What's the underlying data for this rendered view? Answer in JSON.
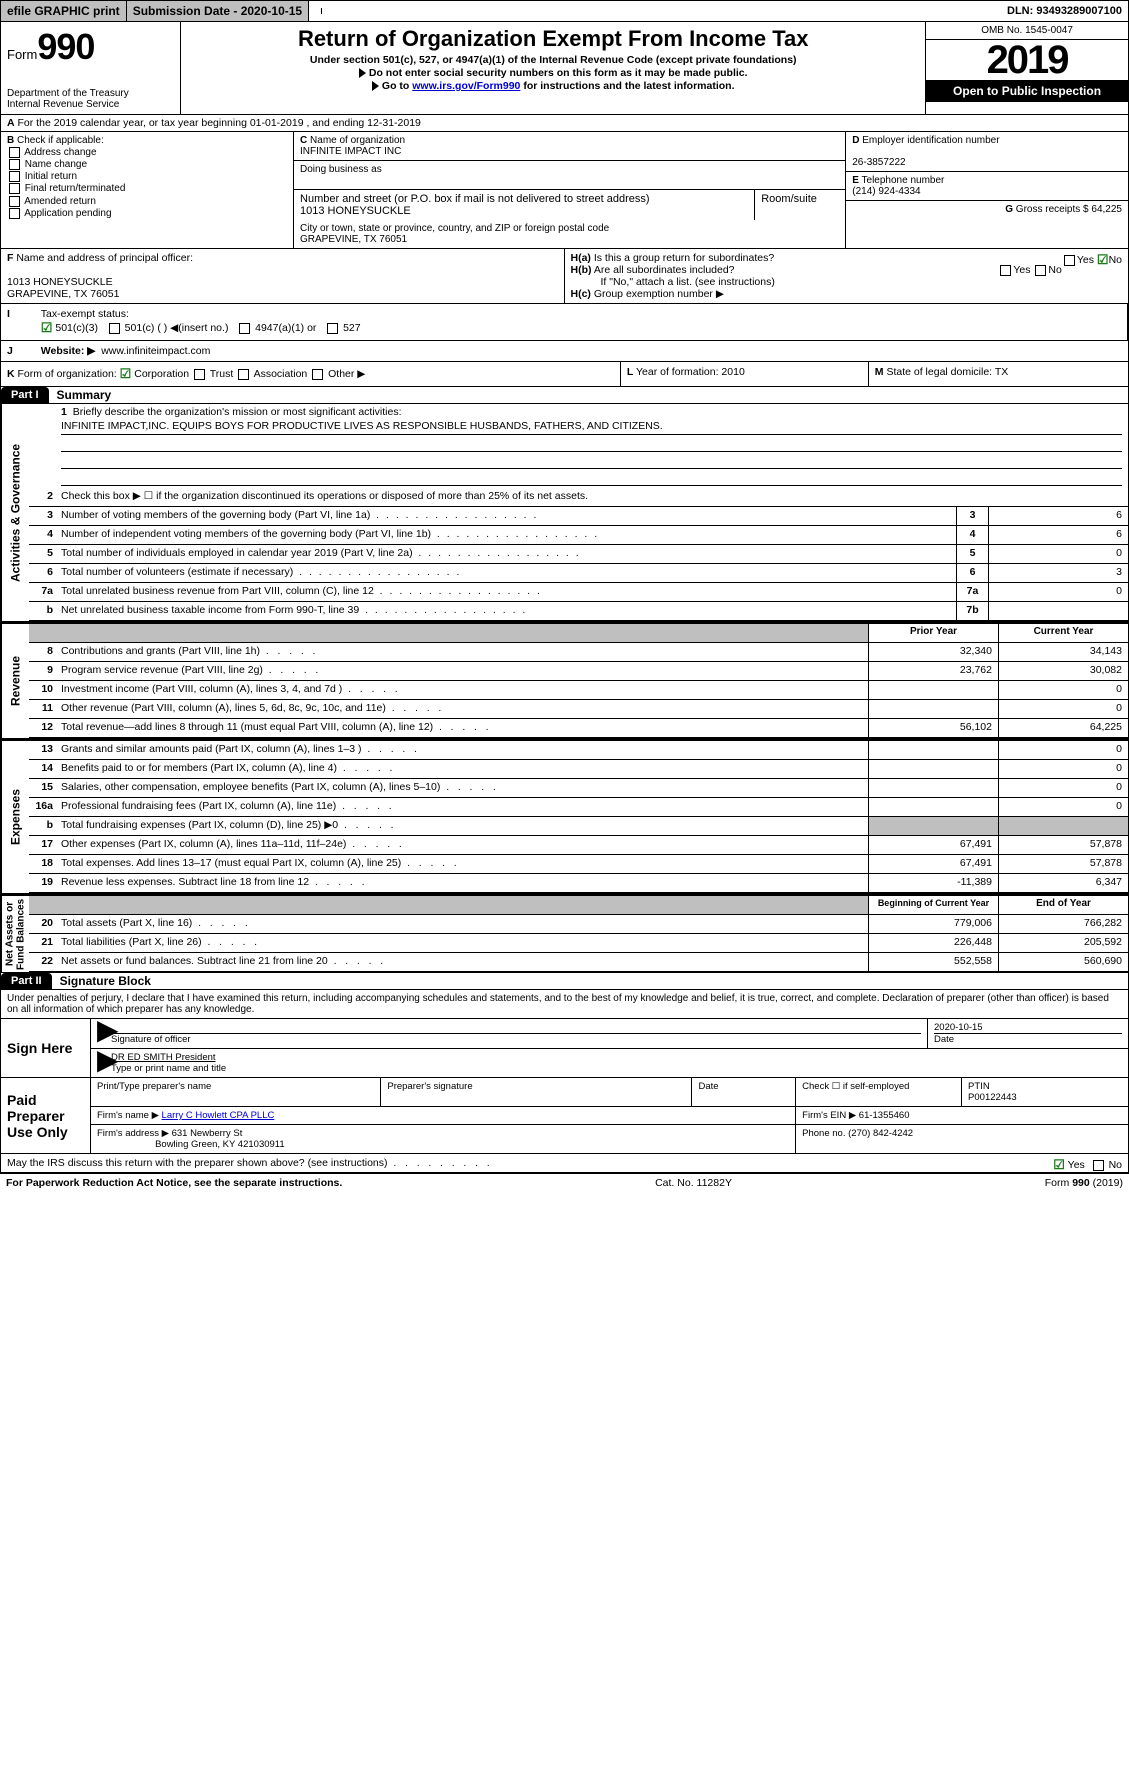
{
  "topbar": {
    "efile": "efile GRAPHIC print",
    "submission_label": "Submission Date - 2020-10-15",
    "dln": "DLN: 93493289007100"
  },
  "header": {
    "form_prefix": "Form",
    "form_number": "990",
    "dept": "Department of the Treasury\nInternal Revenue Service",
    "title": "Return of Organization Exempt From Income Tax",
    "sub1": "Under section 501(c), 527, or 4947(a)(1) of the Internal Revenue Code (except private foundations)",
    "sub2": "Do not enter social security numbers on this form as it may be made public.",
    "sub3_pre": "Go to ",
    "sub3_link": "www.irs.gov/Form990",
    "sub3_post": " for instructions and the latest information.",
    "omb": "OMB No. 1545-0047",
    "year": "2019",
    "open": "Open to Public Inspection"
  },
  "lineA": "For the 2019 calendar year, or tax year beginning 01-01-2019    , and ending 12-31-2019",
  "boxB": {
    "label": "Check if applicable:",
    "items": [
      "Address change",
      "Name change",
      "Initial return",
      "Final return/terminated",
      "Amended return",
      "Application pending"
    ]
  },
  "boxC": {
    "name_label": "Name of organization",
    "name": "INFINITE IMPACT INC",
    "dba_label": "Doing business as",
    "addr_label": "Number and street (or P.O. box if mail is not delivered to street address)",
    "room_label": "Room/suite",
    "addr": "1013 HONEYSUCKLE",
    "city_label": "City or town, state or province, country, and ZIP or foreign postal code",
    "city": "GRAPEVINE, TX  76051"
  },
  "boxD": {
    "label": "Employer identification number",
    "val": "26-3857222"
  },
  "boxE": {
    "label": "Telephone number",
    "val": "(214) 924-4334"
  },
  "boxG": {
    "label": "Gross receipts $",
    "val": "64,225"
  },
  "boxF": {
    "label": "Name and address of principal officer:",
    "addr1": "1013 HONEYSUCKLE",
    "addr2": "GRAPEVINE, TX  76051"
  },
  "boxH": {
    "ha": "Is this a group return for subordinates?",
    "hb": "Are all subordinates included?",
    "hb_note": "If \"No,\" attach a list. (see instructions)",
    "hc": "Group exemption number ▶"
  },
  "rowI": {
    "label": "Tax-exempt status:",
    "opts": [
      "501(c)(3)",
      "501(c) (  ) ◀(insert no.)",
      "4947(a)(1) or",
      "527"
    ]
  },
  "rowJ": {
    "label": "Website: ▶",
    "val": "www.infiniteimpact.com"
  },
  "rowK": {
    "label": "Form of organization:",
    "opts": [
      "Corporation",
      "Trust",
      "Association",
      "Other ▶"
    ],
    "l_label": "Year of formation:",
    "l_val": "2010",
    "m_label": "State of legal domicile:",
    "m_val": "TX"
  },
  "part1": {
    "tag": "Part I",
    "title": "Summary",
    "q1": "Briefly describe the organization's mission or most significant activities:",
    "mission": "INFINITE IMPACT,INC. EQUIPS BOYS FOR PRODUCTIVE LIVES AS RESPONSIBLE HUSBANDS, FATHERS, AND CITIZENS.",
    "q2": "Check this box ▶ ☐  if the organization discontinued its operations or disposed of more than 25% of its net assets.",
    "sideA": "Activities & Governance",
    "sideB": "Revenue",
    "sideC": "Expenses",
    "sideD": "Net Assets or Fund Balances",
    "govrows": [
      {
        "n": "3",
        "t": "Number of voting members of the governing body (Part VI, line 1a)",
        "cn": "3",
        "cv": "6"
      },
      {
        "n": "4",
        "t": "Number of independent voting members of the governing body (Part VI, line 1b)",
        "cn": "4",
        "cv": "6"
      },
      {
        "n": "5",
        "t": "Total number of individuals employed in calendar year 2019 (Part V, line 2a)",
        "cn": "5",
        "cv": "0"
      },
      {
        "n": "6",
        "t": "Total number of volunteers (estimate if necessary)",
        "cn": "6",
        "cv": "3"
      },
      {
        "n": "7a",
        "t": "Total unrelated business revenue from Part VIII, column (C), line 12",
        "cn": "7a",
        "cv": "0"
      },
      {
        "n": "b",
        "t": "Net unrelated business taxable income from Form 990-T, line 39",
        "cn": "7b",
        "cv": ""
      }
    ],
    "col_prior": "Prior Year",
    "col_current": "Current Year",
    "revrows": [
      {
        "n": "8",
        "t": "Contributions and grants (Part VIII, line 1h)",
        "c1": "32,340",
        "c2": "34,143"
      },
      {
        "n": "9",
        "t": "Program service revenue (Part VIII, line 2g)",
        "c1": "23,762",
        "c2": "30,082"
      },
      {
        "n": "10",
        "t": "Investment income (Part VIII, column (A), lines 3, 4, and 7d )",
        "c1": "",
        "c2": "0"
      },
      {
        "n": "11",
        "t": "Other revenue (Part VIII, column (A), lines 5, 6d, 8c, 9c, 10c, and 11e)",
        "c1": "",
        "c2": "0"
      },
      {
        "n": "12",
        "t": "Total revenue—add lines 8 through 11 (must equal Part VIII, column (A), line 12)",
        "c1": "56,102",
        "c2": "64,225"
      }
    ],
    "exprows": [
      {
        "n": "13",
        "t": "Grants and similar amounts paid (Part IX, column (A), lines 1–3 )",
        "c1": "",
        "c2": "0"
      },
      {
        "n": "14",
        "t": "Benefits paid to or for members (Part IX, column (A), line 4)",
        "c1": "",
        "c2": "0"
      },
      {
        "n": "15",
        "t": "Salaries, other compensation, employee benefits (Part IX, column (A), lines 5–10)",
        "c1": "",
        "c2": "0"
      },
      {
        "n": "16a",
        "t": "Professional fundraising fees (Part IX, column (A), line 11e)",
        "c1": "",
        "c2": "0"
      },
      {
        "n": "b",
        "t": "Total fundraising expenses (Part IX, column (D), line 25) ▶0",
        "c1": "grey",
        "c2": "grey"
      },
      {
        "n": "17",
        "t": "Other expenses (Part IX, column (A), lines 11a–11d, 11f–24e)",
        "c1": "67,491",
        "c2": "57,878"
      },
      {
        "n": "18",
        "t": "Total expenses. Add lines 13–17 (must equal Part IX, column (A), line 25)",
        "c1": "67,491",
        "c2": "57,878"
      },
      {
        "n": "19",
        "t": "Revenue less expenses. Subtract line 18 from line 12",
        "c1": "-11,389",
        "c2": "6,347"
      }
    ],
    "col_begin": "Beginning of Current Year",
    "col_end": "End of Year",
    "netrows": [
      {
        "n": "20",
        "t": "Total assets (Part X, line 16)",
        "c1": "779,006",
        "c2": "766,282"
      },
      {
        "n": "21",
        "t": "Total liabilities (Part X, line 26)",
        "c1": "226,448",
        "c2": "205,592"
      },
      {
        "n": "22",
        "t": "Net assets or fund balances. Subtract line 21 from line 20",
        "c1": "552,558",
        "c2": "560,690"
      }
    ]
  },
  "part2": {
    "tag": "Part II",
    "title": "Signature Block",
    "decl": "Under penalties of perjury, I declare that I have examined this return, including accompanying schedules and statements, and to the best of my knowledge and belief, it is true, correct, and complete. Declaration of preparer (other than officer) is based on all information of which preparer has any knowledge.",
    "sign_here": "Sign Here",
    "sig_officer": "Signature of officer",
    "sig_date": "2020-10-15",
    "date_label": "Date",
    "officer_name": "DR ED SMITH  President",
    "type_name": "Type or print name and title",
    "paid": "Paid Preparer Use Only",
    "prep_name_label": "Print/Type preparer's name",
    "prep_sig_label": "Preparer's signature",
    "prep_date_label": "Date",
    "check_self": "Check ☐ if self-employed",
    "ptin_label": "PTIN",
    "ptin": "P00122443",
    "firm_name_label": "Firm's name    ▶",
    "firm_name": "Larry C Howlett CPA PLLC",
    "firm_ein_label": "Firm's EIN ▶",
    "firm_ein": "61-1355460",
    "firm_addr_label": "Firm's address ▶",
    "firm_addr": "631 Newberry St",
    "firm_city": "Bowling Green, KY  421030911",
    "phone_label": "Phone no.",
    "phone": "(270) 842-4242",
    "discuss": "May the IRS discuss this return with the preparer shown above? (see instructions)",
    "yes": "Yes",
    "no": "No"
  },
  "footer": {
    "left": "For Paperwork Reduction Act Notice, see the separate instructions.",
    "mid": "Cat. No. 11282Y",
    "right": "Form 990 (2019)"
  }
}
